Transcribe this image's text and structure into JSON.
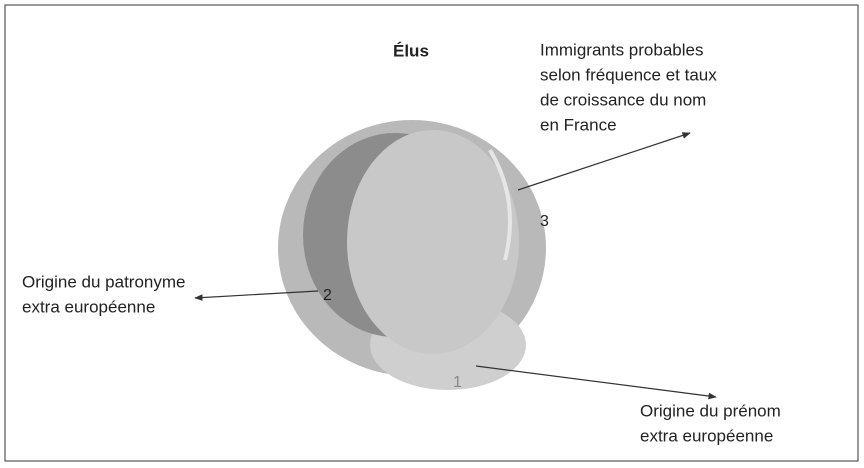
{
  "title": "Élus",
  "regions": [
    {
      "number": "1",
      "label_lines": [
        "Origine du prénom",
        "extra européenne"
      ]
    },
    {
      "number": "2",
      "label_lines": [
        "Origine du patronyme",
        "extra européenne"
      ]
    },
    {
      "number": "3",
      "label_lines": [
        "Immigrants probables",
        "selon fréquence et taux",
        "de croissance du nom",
        "en France"
      ]
    }
  ]
}
